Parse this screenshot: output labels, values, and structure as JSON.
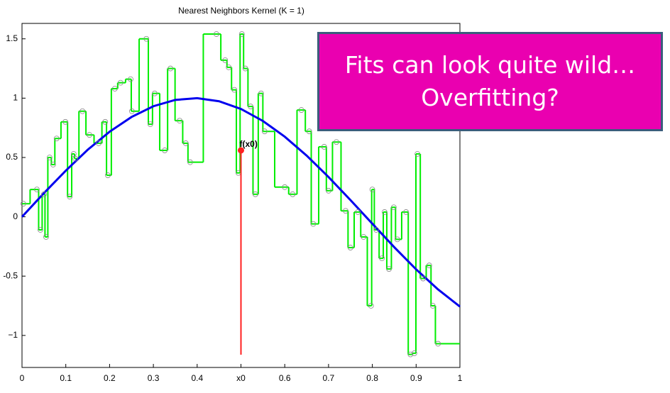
{
  "chart_data": {
    "type": "knn",
    "title": "Nearest Neighbors Kernel (K = 1)",
    "xlim": [
      0,
      1
    ],
    "ylim": [
      -1.27,
      1.63
    ],
    "xticks": [
      0,
      0.1,
      0.2,
      0.3,
      0.4,
      {
        "value": 0.5,
        "label": "x0"
      },
      0.6,
      0.7,
      0.8,
      0.9,
      1
    ],
    "yticks": [
      {
        "value": -1,
        "label": "−1"
      },
      -0.5,
      0,
      0.5,
      1,
      1.5
    ],
    "observations": {
      "color": "#00ee00",
      "marker_color": "#888888",
      "x": [
        0.003,
        0.034,
        0.042,
        0.05,
        0.055,
        0.063,
        0.071,
        0.079,
        0.099,
        0.109,
        0.118,
        0.122,
        0.138,
        0.154,
        0.175,
        0.19,
        0.196,
        0.212,
        0.225,
        0.248,
        0.251,
        0.284,
        0.293,
        0.303,
        0.326,
        0.339,
        0.36,
        0.374,
        0.384,
        0.444,
        0.464,
        0.472,
        0.485,
        0.494,
        0.502,
        0.51,
        0.522,
        0.533,
        0.546,
        0.554,
        0.6,
        0.618,
        0.638,
        0.656,
        0.665,
        0.69,
        0.7,
        0.718,
        0.739,
        0.75,
        0.767,
        0.78,
        0.797,
        0.8,
        0.809,
        0.822,
        0.828,
        0.838,
        0.849,
        0.857,
        0.877,
        0.887,
        0.896,
        0.903,
        0.916,
        0.93,
        0.938,
        0.95
      ],
      "y": [
        0.11,
        0.23,
        -0.11,
        0.19,
        -0.17,
        0.5,
        0.44,
        0.66,
        0.8,
        0.17,
        0.53,
        0.49,
        0.89,
        0.69,
        0.62,
        0.8,
        0.35,
        1.08,
        1.13,
        1.16,
        0.89,
        1.5,
        0.78,
        1.04,
        0.56,
        1.25,
        0.81,
        0.62,
        0.46,
        1.54,
        1.32,
        1.26,
        1.07,
        0.37,
        1.54,
        1.25,
        0.93,
        0.19,
        1.04,
        0.72,
        0.25,
        0.19,
        0.9,
        0.72,
        -0.06,
        0.59,
        0.22,
        0.63,
        0.05,
        -0.26,
        0.04,
        -0.17,
        -0.75,
        0.23,
        -0.11,
        -0.35,
        0.04,
        -0.44,
        0.08,
        -0.19,
        0.04,
        -1.16,
        -1.15,
        0.53,
        -0.52,
        -0.41,
        -0.75,
        -1.07
      ]
    },
    "true_curve": {
      "color": "#0000ee",
      "x": [
        0,
        0.05,
        0.1,
        0.15,
        0.2,
        0.25,
        0.3,
        0.35,
        0.4,
        0.45,
        0.5,
        0.55,
        0.6,
        0.65,
        0.7,
        0.75,
        0.8,
        0.85,
        0.9,
        0.95,
        1
      ],
      "y": [
        0,
        0.199,
        0.389,
        0.565,
        0.717,
        0.841,
        0.932,
        0.985,
        1.0,
        0.974,
        0.909,
        0.808,
        0.675,
        0.516,
        0.335,
        0.141,
        -0.058,
        -0.256,
        -0.443,
        -0.612,
        -0.757
      ]
    },
    "query": {
      "color": "#ff2020",
      "x": 0.5,
      "y": 0.56,
      "label": "f(x0)"
    }
  },
  "callout": {
    "lines": [
      "Fits can look quite wild…",
      "Overfitting?"
    ]
  }
}
